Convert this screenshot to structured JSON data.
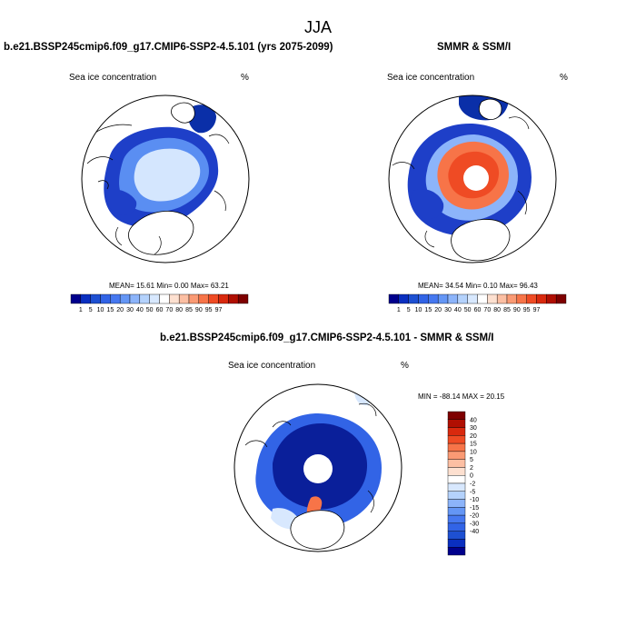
{
  "figure": {
    "season_title": "JJA"
  },
  "panels": {
    "model": {
      "title": "b.e21.BSSP245cmip6.f09_g17.CMIP6-SSP2-4.5.101 (yrs 2075-2099)",
      "left_label": "Sea ice concentration",
      "units": "%",
      "stats": "MEAN=  15.61  Min=   0.00  Max=  63.21"
    },
    "obs": {
      "title": "SMMR & SSM/I",
      "left_label": "Sea ice concentration",
      "units": "%",
      "stats": "MEAN=  34.54  Min=   0.10  Max=  96.43"
    },
    "diff": {
      "title": "b.e21.BSSP245cmip6.f09_g17.CMIP6-SSP2-4.5.101 - SMMR & SSM/I",
      "left_label": "Sea ice concentration",
      "units": "%",
      "minmax": "MIN = -88.14 MAX =  20.15"
    }
  },
  "colors": {
    "concentration": [
      "#00008c",
      "#0a2fc0",
      "#1e50d2",
      "#3264e6",
      "#4678f0",
      "#6496f5",
      "#8cb4fa",
      "#b4d2fc",
      "#d8e8fe",
      "#ffffff",
      "#fde0d0",
      "#fcbfa3",
      "#fa9a74",
      "#f77448",
      "#ef4b24",
      "#d9290e",
      "#b00f02",
      "#7e0000"
    ],
    "difference": [
      "#00008c",
      "#0a2fc0",
      "#1e50d2",
      "#3264e6",
      "#4678f0",
      "#6496f5",
      "#8cb4fa",
      "#b4d2fc",
      "#d8e8fe",
      "#ffffff",
      "#fde0d0",
      "#fcbfa3",
      "#fa9a74",
      "#f77448",
      "#ef4b24",
      "#d9290e",
      "#b00f02",
      "#7e0000"
    ]
  },
  "chart_data": [
    {
      "type": "heatmap",
      "title": "b.e21.BSSP245cmip6.f09_g17.CMIP6-SSP2-4.5.101 (yrs 2075-2099)",
      "variable": "Sea ice concentration",
      "units": "%",
      "projection": "north-polar-stereographic",
      "stats": {
        "mean": 15.61,
        "min": 0.0,
        "max": 63.21
      },
      "colorbar_orientation": "horizontal",
      "colorbar_ticks": [
        "1",
        "5",
        "10",
        "15",
        "20",
        "30",
        "40",
        "50",
        "60",
        "70",
        "80",
        "85",
        "90",
        "95",
        "97"
      ]
    },
    {
      "type": "heatmap",
      "title": "SMMR & SSM/I",
      "variable": "Sea ice concentration",
      "units": "%",
      "projection": "north-polar-stereographic",
      "stats": {
        "mean": 34.54,
        "min": 0.1,
        "max": 96.43
      },
      "colorbar_orientation": "horizontal",
      "colorbar_ticks": [
        "1",
        "5",
        "10",
        "15",
        "20",
        "30",
        "40",
        "50",
        "60",
        "70",
        "80",
        "85",
        "90",
        "95",
        "97"
      ]
    },
    {
      "type": "heatmap",
      "title": "b.e21.BSSP245cmip6.f09_g17.CMIP6-SSP2-4.5.101 - SMMR & SSM/I",
      "variable": "Sea ice concentration",
      "units": "%",
      "projection": "north-polar-stereographic",
      "stats": {
        "min": -88.14,
        "max": 20.15
      },
      "colorbar_orientation": "vertical",
      "colorbar_ticks": [
        "40",
        "30",
        "20",
        "15",
        "10",
        "5",
        "2",
        "0",
        "-2",
        "-5",
        "-10",
        "-15",
        "-20",
        "-30",
        "-40"
      ]
    }
  ]
}
